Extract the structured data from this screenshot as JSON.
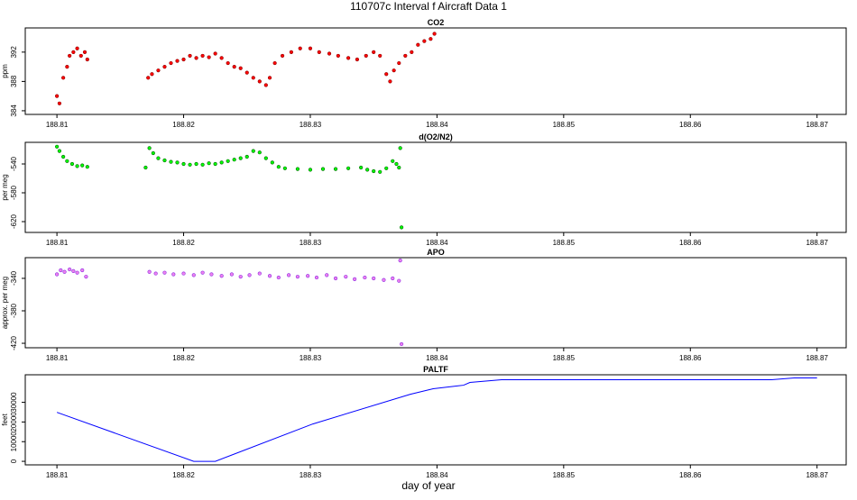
{
  "title": "110707c   Interval f Aircraft Data 1",
  "xlabel": "day of year",
  "chart_data": [
    {
      "type": "scatter",
      "title": "CO2",
      "ylabel": "ppm",
      "color": "#ff0000",
      "edge": "#8b0000",
      "xlim": [
        188.8075,
        188.8723
      ],
      "xticks": [
        188.81,
        188.82,
        188.83,
        188.84,
        188.85,
        188.86,
        188.87
      ],
      "ylim": [
        383.5,
        395.3
      ],
      "yticks": [
        384,
        388,
        392
      ],
      "x": [
        188.81,
        188.8102,
        188.8105,
        188.8108,
        188.811,
        188.8113,
        188.8116,
        188.8119,
        188.8122,
        188.8124,
        188.8172,
        188.8175,
        188.818,
        188.8185,
        188.819,
        188.8195,
        188.82,
        188.8205,
        188.821,
        188.8215,
        188.822,
        188.8225,
        188.823,
        188.8235,
        188.824,
        188.8245,
        188.825,
        188.8255,
        188.826,
        188.8265,
        188.8268,
        188.8272,
        188.8278,
        188.8285,
        188.8292,
        188.83,
        188.8307,
        188.8315,
        188.8322,
        188.833,
        188.8337,
        188.8344,
        188.835,
        188.8355,
        188.836,
        188.8363,
        188.8366,
        188.837,
        188.8375,
        188.838,
        188.8385,
        188.839,
        188.8395,
        188.8398
      ],
      "values": [
        386,
        385,
        388.5,
        390,
        391.5,
        392,
        392.5,
        391.5,
        392,
        391,
        388.5,
        389,
        389.5,
        390,
        390.5,
        390.8,
        391,
        391.5,
        391.2,
        391.5,
        391.3,
        391.8,
        391.2,
        390.5,
        390,
        389.8,
        389.2,
        388.5,
        388,
        387.5,
        388.5,
        390.5,
        391.5,
        392,
        392.5,
        392.5,
        392,
        391.8,
        391.5,
        391.2,
        391,
        391.5,
        392,
        391.5,
        389,
        388,
        389.5,
        390.5,
        391.5,
        392,
        393,
        393.5,
        393.8,
        394.5
      ]
    },
    {
      "type": "scatter",
      "title": "d(O2/N2)",
      "ylabel": "per meg",
      "color": "#00ff00",
      "edge": "#006400",
      "xlim": [
        188.8075,
        188.8723
      ],
      "xticks": [
        188.81,
        188.82,
        188.83,
        188.84,
        188.85,
        188.86,
        188.87
      ],
      "ylim": [
        -635,
        -510
      ],
      "yticks": [
        -540,
        -580,
        -620
      ],
      "x": [
        188.81,
        188.8102,
        188.8105,
        188.8108,
        188.8112,
        188.8116,
        188.812,
        188.8124,
        188.817,
        188.8173,
        188.8176,
        188.818,
        188.8185,
        188.819,
        188.8195,
        188.82,
        188.8205,
        188.821,
        188.8215,
        188.822,
        188.8225,
        188.823,
        188.8235,
        188.824,
        188.8245,
        188.825,
        188.8255,
        188.826,
        188.8265,
        188.827,
        188.8275,
        188.828,
        188.829,
        188.83,
        188.831,
        188.832,
        188.833,
        188.834,
        188.8345,
        188.835,
        188.8355,
        188.836,
        188.8365,
        188.8368,
        188.837,
        188.8372,
        188.8371
      ],
      "values": [
        -516,
        -522,
        -530,
        -536,
        -540,
        -543,
        -542,
        -544,
        -545,
        -518,
        -525,
        -532,
        -535,
        -537,
        -538,
        -540,
        -541,
        -540,
        -541,
        -539,
        -540,
        -538,
        -536,
        -534,
        -532,
        -530,
        -522,
        -524,
        -532,
        -538,
        -544,
        -546,
        -547,
        -548,
        -547,
        -547,
        -546,
        -545,
        -548,
        -550,
        -551,
        -546,
        -536,
        -540,
        -545,
        -628,
        -518
      ]
    },
    {
      "type": "scatter",
      "title": "APO",
      "ylabel": "approx. per meg",
      "color": "#ee82ee",
      "edge": "#8a2be2",
      "xlim": [
        188.8075,
        188.8723
      ],
      "xticks": [
        188.81,
        188.82,
        188.83,
        188.84,
        188.85,
        188.86,
        188.87
      ],
      "ylim": [
        -425.5,
        -314.5
      ],
      "yticks": [
        -340,
        -380,
        -420
      ],
      "x": [
        188.81,
        188.8103,
        188.8106,
        188.811,
        188.8113,
        188.8116,
        188.812,
        188.8123,
        188.8173,
        188.8178,
        188.8185,
        188.8192,
        188.82,
        188.8208,
        188.8215,
        188.8222,
        188.823,
        188.8238,
        188.8245,
        188.8252,
        188.826,
        188.8268,
        188.8275,
        188.8283,
        188.829,
        188.8298,
        188.8305,
        188.8313,
        188.832,
        188.8328,
        188.8335,
        188.8343,
        188.835,
        188.8358,
        188.8365,
        188.837,
        188.8371,
        188.8372
      ],
      "values": [
        -335,
        -330,
        -332,
        -329,
        -331,
        -333,
        -330,
        -338,
        -332,
        -334,
        -333,
        -335,
        -334,
        -336,
        -333,
        -335,
        -337,
        -335,
        -338,
        -336,
        -334,
        -337,
        -339,
        -336,
        -338,
        -337,
        -339,
        -336,
        -340,
        -338,
        -341,
        -339,
        -340,
        -342,
        -340,
        -343,
        -318,
        -421
      ]
    },
    {
      "type": "line",
      "title": "PALTF",
      "ylabel": "feet",
      "color": "#0000ff",
      "xlim": [
        188.8075,
        188.8723
      ],
      "xticks": [
        188.81,
        188.82,
        188.83,
        188.84,
        188.85,
        188.86,
        188.87
      ],
      "ylim": [
        -1800,
        44000
      ],
      "yticks": [
        0,
        10000,
        20000,
        30000
      ],
      "x": [
        188.81,
        188.8208,
        188.8225,
        188.8302,
        188.8379,
        188.8397,
        188.8421,
        188.8426,
        188.8451,
        188.8664,
        188.8682,
        188.87
      ],
      "values": [
        24900,
        0,
        0,
        19000,
        34100,
        36900,
        38700,
        40100,
        41500,
        41500,
        42400,
        42400
      ]
    }
  ]
}
